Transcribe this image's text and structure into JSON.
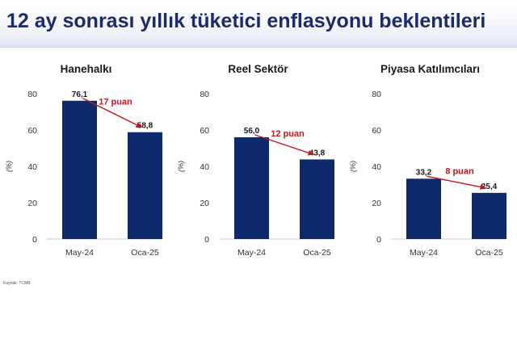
{
  "page_title": "12 ay sonrası yıllık tüketici enflasyonu beklentileri",
  "source": "Kaynak: TCMB",
  "colors": {
    "bar": "#0d2a6b",
    "arrow": "#c0191c",
    "title": "#1c2b6b"
  },
  "chart_data": [
    {
      "type": "bar",
      "title": "Hanehalkı",
      "ylabel": "(%)",
      "ylim": [
        0,
        80
      ],
      "yticks": [
        "0",
        "20",
        "40",
        "60",
        "80"
      ],
      "categories": [
        "May-24",
        "Oca-25"
      ],
      "values": [
        76.1,
        58.8
      ],
      "value_labels": [
        "76,1",
        "58,8"
      ],
      "annotation": "17 puan"
    },
    {
      "type": "bar",
      "title": "Reel Sektör",
      "ylabel": "(%)",
      "ylim": [
        0,
        80
      ],
      "yticks": [
        "0",
        "20",
        "40",
        "60",
        "80"
      ],
      "categories": [
        "May-24",
        "Oca-25"
      ],
      "values": [
        56.0,
        43.8
      ],
      "value_labels": [
        "56,0",
        "43,8"
      ],
      "annotation": "12 puan"
    },
    {
      "type": "bar",
      "title": "Piyasa Katılımcıları",
      "ylabel": "(%)",
      "ylim": [
        0,
        80
      ],
      "yticks": [
        "0",
        "20",
        "40",
        "60",
        "80"
      ],
      "categories": [
        "May-24",
        "Oca-25"
      ],
      "values": [
        33.2,
        25.4
      ],
      "value_labels": [
        "33,2",
        "25,4"
      ],
      "annotation": "8 puan"
    }
  ]
}
